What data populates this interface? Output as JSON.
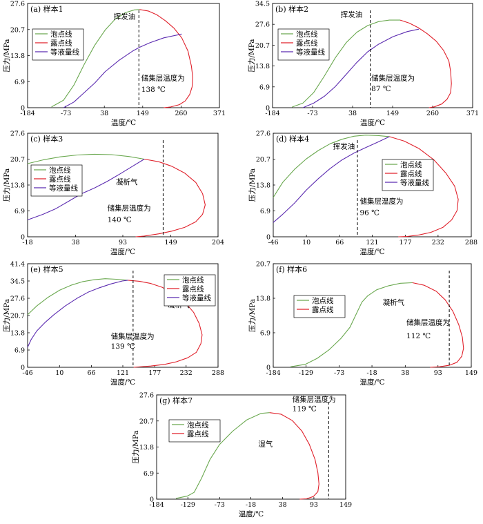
{
  "series_names": {
    "bubble": "泡点线",
    "dew": "露点线",
    "iso": "等液量线"
  },
  "colors": {
    "bubble": "#6aa84f",
    "dew": "#e0202a",
    "iso": "#5b2bb0",
    "axis": "#000000",
    "reservoir": "#000000"
  },
  "xlabel": "温度/℃",
  "ylabel": "压力/MPa",
  "chart_data": [
    {
      "type": "line",
      "title": "(a) 样本1",
      "x_ticks": [
        "-184",
        "-73",
        "38",
        "149",
        "260",
        "371"
      ],
      "y_ticks": [
        "0",
        "6.9",
        "13.8",
        "20.7",
        "27.6"
      ],
      "xlim": [
        -184,
        371
      ],
      "ylim": [
        0,
        27.6
      ],
      "reservoir_temp": 138,
      "annotations": [
        {
          "text": "挥发油",
          "x": 65,
          "y": 23.5
        },
        {
          "text": "储集层温度为",
          "x": 145,
          "y": 7.2
        },
        {
          "text": "138 ℃",
          "x": 145,
          "y": 4.2
        }
      ],
      "legend": "upper-left",
      "series": [
        {
          "key": "bubble",
          "x": [
            -115,
            -80,
            -50,
            -20,
            10,
            40,
            70,
            100,
            125,
            140
          ],
          "y": [
            0.2,
            2.0,
            6.0,
            11.5,
            16.5,
            20.5,
            23.5,
            25.2,
            25.9,
            26.0
          ]
        },
        {
          "key": "dew",
          "x": [
            140,
            165,
            190,
            215,
            240,
            262,
            280,
            290,
            294,
            292,
            285,
            272,
            255,
            230,
            210
          ],
          "y": [
            26.0,
            25.6,
            24.6,
            23.0,
            21.0,
            18.5,
            15.0,
            11.0,
            8.0,
            5.5,
            3.5,
            1.8,
            0.8,
            0.2,
            0.0
          ]
        },
        {
          "key": "iso",
          "x": [
            -80,
            -50,
            -20,
            10,
            40,
            80,
            120,
            140,
            170,
            210,
            262
          ],
          "y": [
            0.0,
            1.5,
            4.0,
            6.5,
            9.5,
            12.5,
            15.0,
            16.0,
            17.2,
            18.5,
            19.5
          ]
        }
      ]
    },
    {
      "type": "line",
      "title": "(b) 样本2",
      "x_ticks": [
        "-184",
        "-73",
        "38",
        "149",
        "260",
        "371"
      ],
      "y_ticks": [
        "0",
        "6.9",
        "13.8",
        "20.7",
        "27.6",
        "34.5"
      ],
      "xlim": [
        -184,
        371
      ],
      "ylim": [
        0,
        34.5
      ],
      "reservoir_temp": 87,
      "annotations": [
        {
          "text": "挥发油",
          "x": 5,
          "y": 30.0
        },
        {
          "text": "储集层温度为",
          "x": 90,
          "y": 9.0
        },
        {
          "text": "87 ℃",
          "x": 90,
          "y": 5.5
        }
      ],
      "legend": "upper-left",
      "series": [
        {
          "key": "bubble",
          "x": [
            -130,
            -100,
            -70,
            -40,
            -10,
            20,
            50,
            80,
            110,
            140,
            170
          ],
          "y": [
            0.2,
            1.5,
            5.0,
            10.5,
            16.5,
            21.5,
            25.0,
            27.2,
            28.5,
            29.0,
            29.0
          ]
        },
        {
          "key": "dew",
          "x": [
            170,
            195,
            220,
            245,
            270,
            290,
            305,
            310,
            312,
            310,
            300,
            285,
            265,
            250
          ],
          "y": [
            29.0,
            28.0,
            26.5,
            24.5,
            22.0,
            19.0,
            15.5,
            12.0,
            8.0,
            5.0,
            2.8,
            1.2,
            0.3,
            0.0
          ]
        },
        {
          "key": "iso",
          "x": [
            -100,
            -70,
            -40,
            -10,
            20,
            50,
            80,
            110,
            150,
            190,
            222
          ],
          "y": [
            0.0,
            1.5,
            3.8,
            7.0,
            11.0,
            15.0,
            18.5,
            21.0,
            23.5,
            25.2,
            26.0
          ]
        }
      ]
    },
    {
      "type": "line",
      "title": "(c) 样本3",
      "x_ticks": [
        "-18",
        "38",
        "93",
        "149",
        "204"
      ],
      "y_ticks": [
        "0",
        "6.9",
        "13.8",
        "20.7",
        "27.6"
      ],
      "xlim": [
        -18,
        204
      ],
      "ylim": [
        0,
        27.6
      ],
      "reservoir_temp": 140,
      "annotations": [
        {
          "text": "凝析气",
          "x": 85,
          "y": 14.0
        },
        {
          "text": "储集层温度为",
          "x": 75,
          "y": 7.0
        },
        {
          "text": "140 ℃",
          "x": 75,
          "y": 4.0
        }
      ],
      "legend": "upper-left",
      "series": [
        {
          "key": "bubble",
          "x": [
            -18,
            0,
            20,
            40,
            60,
            80,
            100,
            118
          ],
          "y": [
            19.5,
            20.5,
            21.3,
            21.8,
            22.0,
            21.9,
            21.4,
            20.7
          ]
        },
        {
          "key": "dew",
          "x": [
            118,
            135,
            150,
            165,
            178,
            186,
            189,
            186,
            178,
            165,
            150,
            135,
            118,
            108
          ],
          "y": [
            20.7,
            20.0,
            18.8,
            17.0,
            14.5,
            11.5,
            8.5,
            6.0,
            4.0,
            2.5,
            1.5,
            0.8,
            0.2,
            0.0
          ]
        },
        {
          "key": "iso",
          "x": [
            -18,
            0,
            15,
            30,
            45,
            60,
            75,
            90,
            105,
            118
          ],
          "y": [
            4.5,
            6.0,
            7.5,
            9.5,
            11.5,
            13.0,
            14.8,
            16.8,
            18.9,
            20.7
          ]
        }
      ]
    },
    {
      "type": "line",
      "title": "(d) 样本4",
      "x_ticks": [
        "-46",
        "10",
        "66",
        "121",
        "177",
        "232",
        "288"
      ],
      "y_ticks": [
        "0",
        "6.9",
        "13.8",
        "20.7",
        "27.6"
      ],
      "xlim": [
        -46,
        288
      ],
      "ylim": [
        0,
        27.6
      ],
      "reservoir_temp": 96,
      "annotations": [
        {
          "text": "挥发油",
          "x": 55,
          "y": 23.5
        },
        {
          "text": "储集层温度为",
          "x": 100,
          "y": 8.8
        },
        {
          "text": "96 ℃",
          "x": 100,
          "y": 5.8
        }
      ],
      "legend": "upper-right",
      "series": [
        {
          "key": "bubble",
          "x": [
            -46,
            -30,
            -10,
            10,
            30,
            50,
            70,
            90,
            110,
            130,
            150
          ],
          "y": [
            10.5,
            14.5,
            18.0,
            20.8,
            23.0,
            24.8,
            26.0,
            26.8,
            27.1,
            27.0,
            26.7
          ]
        },
        {
          "key": "dew",
          "x": [
            150,
            175,
            200,
            225,
            245,
            260,
            266,
            264,
            255,
            240,
            220,
            200,
            180,
            165
          ],
          "y": [
            26.7,
            25.5,
            23.5,
            20.5,
            17.0,
            13.5,
            10.0,
            7.0,
            4.5,
            2.5,
            1.2,
            0.5,
            0.1,
            0.0
          ]
        },
        {
          "key": "iso",
          "x": [
            -46,
            -30,
            -10,
            10,
            30,
            50,
            70,
            90,
            110,
            130,
            150
          ],
          "y": [
            3.8,
            6.0,
            9.0,
            12.5,
            15.5,
            18.2,
            20.5,
            22.3,
            23.8,
            25.2,
            26.7
          ]
        }
      ]
    },
    {
      "type": "line",
      "title": "(e) 样本5",
      "x_ticks": [
        "-46",
        "10",
        "66",
        "121",
        "177",
        "232",
        "288"
      ],
      "y_ticks": [
        "0",
        "6.9",
        "13.8",
        "20.7",
        "27.6",
        "34.5",
        "41.4"
      ],
      "xlim": [
        -46,
        288
      ],
      "ylim": [
        0,
        41.4
      ],
      "reservoir_temp": 139,
      "annotations": [
        {
          "text": "凝析气",
          "x": 200,
          "y": 24.0
        },
        {
          "text": "储集层温度为",
          "x": 100,
          "y": 11.5
        },
        {
          "text": "139 ℃",
          "x": 100,
          "y": 7.5
        }
      ],
      "legend": "upper-right",
      "series": [
        {
          "key": "bubble",
          "x": [
            -46,
            -30,
            -10,
            10,
            30,
            50,
            70,
            90,
            110,
            130
          ],
          "y": [
            21.0,
            24.5,
            28.0,
            30.8,
            32.8,
            34.2,
            35.0,
            35.4,
            35.2,
            34.8
          ]
        },
        {
          "key": "dew",
          "x": [
            130,
            150,
            170,
            190,
            210,
            230,
            245,
            255,
            260,
            258,
            250,
            235,
            215,
            195,
            170,
            140
          ],
          "y": [
            34.8,
            34.4,
            33.5,
            32.0,
            29.5,
            26.0,
            22.0,
            17.5,
            13.0,
            9.5,
            6.0,
            3.8,
            2.2,
            1.2,
            0.5,
            0.0
          ]
        },
        {
          "key": "iso",
          "x": [
            -46,
            -40,
            -30,
            -15,
            0,
            20,
            40,
            60,
            80,
            100,
            120,
            130
          ],
          "y": [
            8.0,
            11.0,
            14.5,
            18.0,
            21.0,
            24.5,
            27.5,
            30.0,
            31.8,
            33.3,
            34.5,
            34.8
          ]
        }
      ]
    },
    {
      "type": "line",
      "title": "(f) 样本6",
      "x_ticks": [
        "-184",
        "-129",
        "-73",
        "-18",
        "38",
        "93",
        "149"
      ],
      "y_ticks": [
        "0",
        "6.9",
        "13.8",
        "20.7"
      ],
      "xlim": [
        -184,
        149
      ],
      "ylim": [
        0,
        20.7
      ],
      "reservoir_temp": 112,
      "annotations": [
        {
          "text": "凝析气",
          "x": 0,
          "y": 12.5
        },
        {
          "text": "储集层温度为",
          "x": 40,
          "y": 8.5
        },
        {
          "text": "112 ℃",
          "x": 40,
          "y": 5.8
        }
      ],
      "legend": "upper-left",
      "series": [
        {
          "key": "bubble",
          "x": [
            -155,
            -130,
            -110,
            -90,
            -70,
            -55,
            -45,
            -35,
            -25,
            -10,
            10,
            30,
            50
          ],
          "y": [
            0.1,
            0.6,
            1.8,
            3.5,
            5.8,
            8.0,
            10.5,
            13.0,
            14.3,
            15.5,
            16.3,
            16.8,
            16.9
          ]
        },
        {
          "key": "dew",
          "x": [
            50,
            70,
            90,
            105,
            118,
            128,
            134,
            136,
            133,
            125,
            112,
            95,
            80
          ],
          "y": [
            16.9,
            16.4,
            15.2,
            13.5,
            11.2,
            8.5,
            6.0,
            3.8,
            2.2,
            1.0,
            0.4,
            0.1,
            0.0
          ]
        }
      ]
    },
    {
      "type": "line",
      "title": "(g) 样本7",
      "x_ticks": [
        "-184",
        "-129",
        "-73",
        "-18",
        "38",
        "93",
        "149"
      ],
      "y_ticks": [
        "0",
        "6.9",
        "13.8",
        "20.7",
        "27.6"
      ],
      "xlim": [
        -184,
        149
      ],
      "ylim": [
        0,
        27.6
      ],
      "reservoir_temp": 119,
      "annotations": [
        {
          "text": "湿气",
          "x": -5,
          "y": 14.0
        },
        {
          "text": "储集层温度为",
          "x": 55,
          "y": 25.8
        },
        {
          "text": "119 ℃",
          "x": 55,
          "y": 23.3
        }
      ],
      "legend": "upper-left",
      "series": [
        {
          "key": "bubble",
          "x": [
            -150,
            -130,
            -118,
            -105,
            -90,
            -73,
            -50,
            -25,
            0,
            15
          ],
          "y": [
            0.2,
            0.8,
            1.8,
            5.5,
            10.5,
            14.5,
            18.0,
            21.0,
            22.7,
            22.9
          ]
        },
        {
          "key": "dew",
          "x": [
            15,
            35,
            55,
            72,
            85,
            95,
            100,
            102,
            100,
            92,
            80,
            68
          ],
          "y": [
            22.9,
            22.5,
            20.8,
            18.0,
            14.5,
            10.5,
            7.0,
            4.0,
            2.0,
            0.7,
            0.1,
            0.0
          ]
        }
      ]
    }
  ]
}
